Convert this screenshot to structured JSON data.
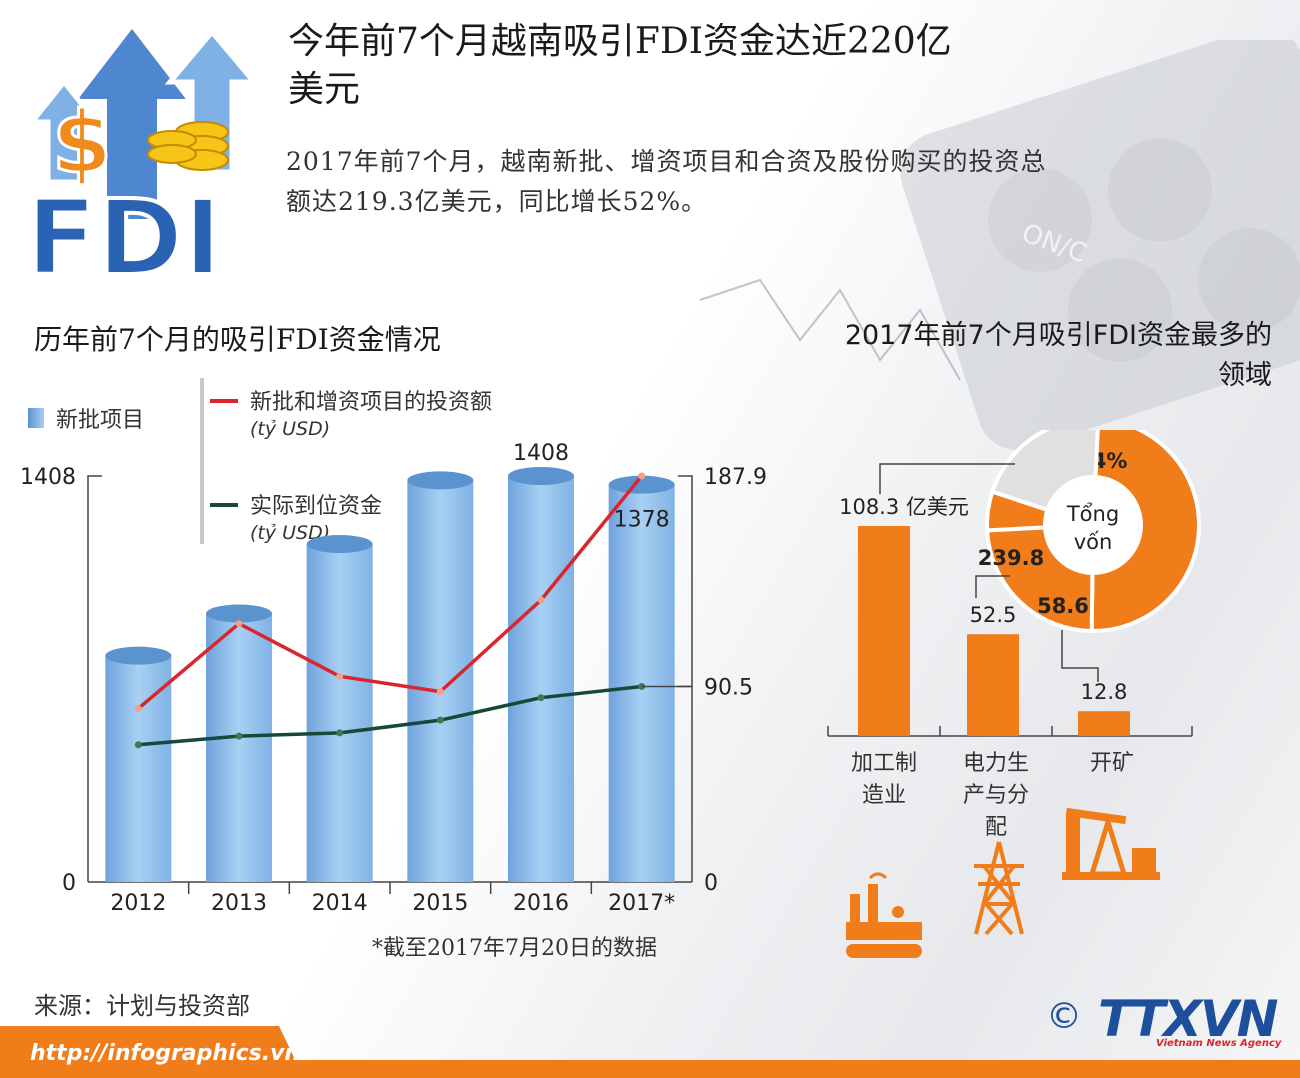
{
  "header": {
    "title_line1": "今年前7个月越南吸引FDI资金达近220亿",
    "title_line2": "美元",
    "intro_line1": "2017年前7个月，越南新批、增资项目和合资及股份购买的投资总",
    "intro_line2": "额达219.3亿美元，同比增长52%。",
    "logo_text": "FDI",
    "logo_symbol": "$"
  },
  "left_section": {
    "title": "历年前7个月的吸引FDI资金情况",
    "note": "*截至2017年7月20日的数据"
  },
  "right_section": {
    "title_line1": "2017年前7个月吸引FDI资金最多的",
    "title_line2": "领域"
  },
  "source": "来源：计划与投资部",
  "footer": {
    "url": "http://infographics.vn",
    "copyright_symbol": "©",
    "agency_logo": "TTXVN",
    "agency_tagline": "Vietnam News Agency"
  },
  "colors": {
    "accent_orange": "#f07d1a",
    "bar_blue": "#8fbfe9",
    "bar_blue_top": "#5b93cf",
    "line_red": "#d9262c",
    "line_green": "#17493a",
    "donut_grey": "#e0e0e0",
    "logo_blue": "#2a63b4"
  },
  "chart_data": [
    {
      "type": "bar",
      "categories": [
        "2012",
        "2013",
        "2014",
        "2015",
        "2016",
        "2017*"
      ],
      "series": [
        {
          "name": "新批项目",
          "values": [
            785,
            931,
            1172,
            1393,
            1408,
            1378
          ],
          "axis": "left"
        },
        {
          "name": "新批和增资项目的投资额",
          "unit": "(tỷ USD)",
          "type": "line",
          "values": [
            80.3,
            119.6,
            95.2,
            88.1,
            130.5,
            187.9
          ],
          "axis": "right"
        },
        {
          "name": "实际到位资金",
          "unit": "(tỷ USD)",
          "type": "line",
          "values": [
            63.5,
            67.5,
            69.0,
            74.9,
            85.3,
            90.5
          ],
          "axis": "right"
        }
      ],
      "left_axis": {
        "ticks": [
          0,
          1408
        ],
        "ylim": [
          0,
          1408
        ]
      },
      "right_axis": {
        "ticks": [
          0,
          90.5,
          187.9
        ],
        "ylim": [
          0,
          187.9
        ]
      },
      "data_labels": [
        {
          "series": "新批项目",
          "category": "2016",
          "text": "1408"
        },
        {
          "series": "新批项目",
          "category": "2017*",
          "text": "1378"
        }
      ],
      "legend": [
        {
          "label": "新批项目",
          "unit": ""
        },
        {
          "label": "新批和增资项目的投资额",
          "unit": "(tỷ USD)"
        },
        {
          "label": "实际到位资金",
          "unit": "(tỷ USD)"
        }
      ]
    },
    {
      "type": "bar",
      "categories": [
        "加工制造业",
        "电力生产与分配",
        "开矿"
      ],
      "category_lines": [
        [
          "加工制",
          "造业"
        ],
        [
          "电力生",
          "产与分",
          "配"
        ],
        [
          "开矿"
        ]
      ],
      "icons": [
        "factory-icon",
        "power-tower-icon",
        "oil-pump-icon"
      ],
      "values": [
        108.3,
        52.5,
        12.8
      ],
      "value_labels": [
        "108.3 亿美元",
        "52.5",
        "12.8"
      ],
      "ylim": [
        0,
        108.3
      ]
    },
    {
      "type": "pie",
      "center_label_line1": "Tổng",
      "center_label_line2": "vốn",
      "slices": [
        {
          "value": 49.4,
          "label": "49.4%",
          "color": "#f07d1a"
        },
        {
          "value": 24.0,
          "label": "239.8",
          "color": "#f07d1a"
        },
        {
          "value": 5.9,
          "label": "58.6",
          "color": "#f07d1a"
        },
        {
          "value": 20.7,
          "label": "",
          "color": "#e0e0e0"
        }
      ]
    }
  ]
}
